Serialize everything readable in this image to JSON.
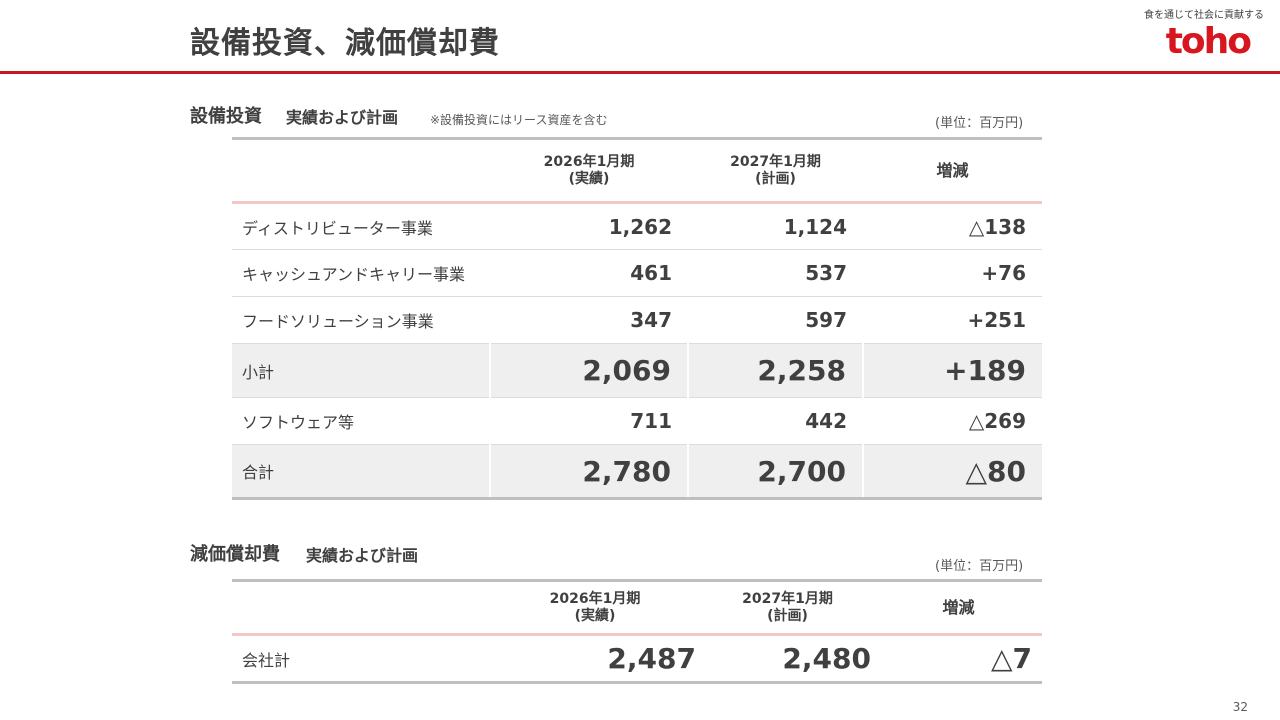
{
  "page": {
    "title": "設備投資、減価償却費",
    "tagline": "食を通じて社会に貢献する",
    "logo": "toho",
    "page_number": "32"
  },
  "capex": {
    "title": "設備投資",
    "subtitle": "実績および計画",
    "note": "※設備投資にはリース資産を含む",
    "unit": "(単位：百万円)",
    "headers": {
      "col1_line1": "2026年1月期",
      "col1_line2": "(実績)",
      "col2_line1": "2027年1月期",
      "col2_line2": "(計画)",
      "col3": "増減"
    },
    "rows": [
      {
        "label": "ディストリビューター事業",
        "actual": "1,262",
        "plan": "1,124",
        "change": "△138"
      },
      {
        "label": "キャッシュアンドキャリー事業",
        "actual": "461",
        "plan": "537",
        "change": "+76"
      },
      {
        "label": "フードソリューション事業",
        "actual": "347",
        "plan": "597",
        "change": "+251"
      },
      {
        "label": "小計",
        "actual": "2,069",
        "plan": "2,258",
        "change": "+189"
      },
      {
        "label": "ソフトウェア等",
        "actual": "711",
        "plan": "442",
        "change": "△269"
      },
      {
        "label": "合計",
        "actual": "2,780",
        "plan": "2,700",
        "change": "△80"
      }
    ]
  },
  "depreciation": {
    "title": "減価償却費",
    "subtitle": "実績および計画",
    "unit": "(単位：百万円)",
    "headers": {
      "col1_line1": "2026年1月期",
      "col1_line2": "(実績)",
      "col2_line1": "2027年1月期",
      "col2_line2": "(計画)",
      "col3": "増減"
    },
    "rows": [
      {
        "label": "会社計",
        "actual": "2,487",
        "plan": "2,480",
        "change": "△7"
      }
    ]
  },
  "colors": {
    "brand_red": "#c8161d",
    "header_line_pink": "#f4c7c9",
    "subtotal_bg": "#efefef",
    "border_gray": "#bfbfbf"
  }
}
